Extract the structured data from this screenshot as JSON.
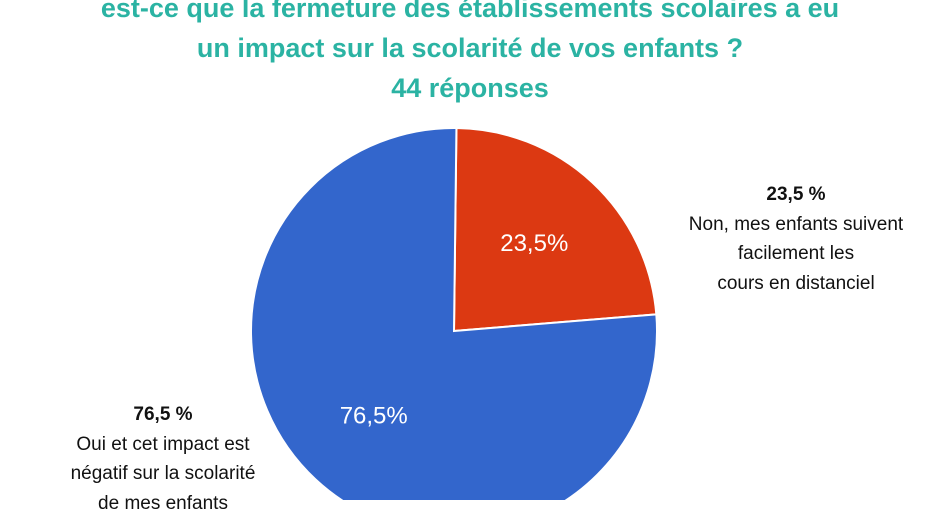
{
  "title": {
    "line1": "est-ce que la fermeture des établissements scolaires a eu",
    "line2": "un impact sur la scolarité de vos enfants ?",
    "responses": "44 réponses"
  },
  "chart_data": {
    "type": "pie",
    "slices": [
      {
        "label": "Non, mes enfants suivent facilement les cours en distanciel",
        "value": 23.5,
        "label_text": "23,5%",
        "color": "#dc3912"
      },
      {
        "label": "Oui et cet impact est négatif sur la scolarité de mes enfants",
        "value": 76.5,
        "label_text": "76,5%",
        "color": "#3366cc"
      }
    ]
  },
  "callouts": {
    "no": {
      "pct": "23,5 %",
      "lines": [
        "Non, mes enfants suivent",
        "facilement les",
        "cours en distanciel"
      ]
    },
    "yes": {
      "pct": "76,5 %",
      "lines": [
        "Oui et cet impact est",
        "négatif sur la scolarité",
        "de mes enfants"
      ]
    }
  }
}
